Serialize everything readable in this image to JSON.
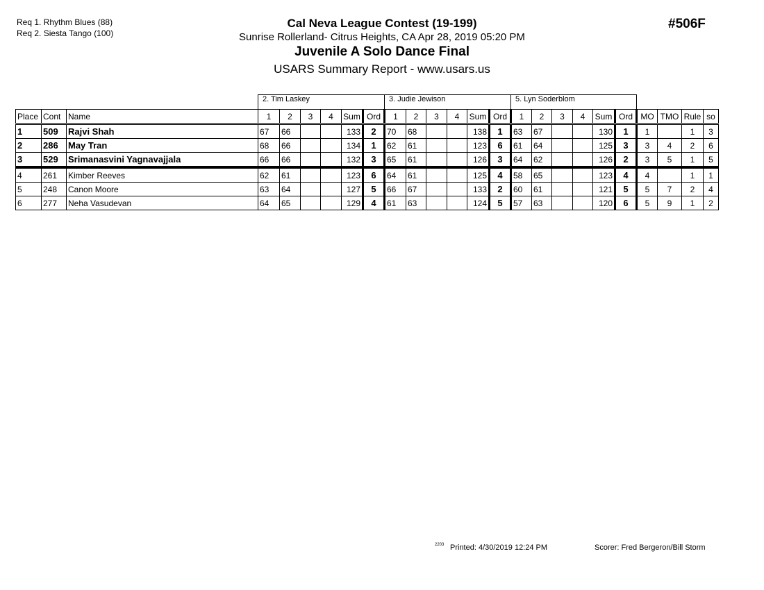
{
  "requests": [
    "Req  1.  Rhythm Blues (88)",
    "Req  2.  Siesta Tango (100)"
  ],
  "header": {
    "title": "Cal Neva League Contest (19-199)",
    "location": "Sunrise Rollerland- Citrus Heights, CA  Apr 28, 2019  05:20 PM",
    "event": "Juvenile A Solo Dance Final",
    "report": "USARS Summary Report - www.usars.us",
    "code": "#506F"
  },
  "judges": [
    "2.  Tim Laskey",
    "3.  Judie  Jewison",
    "5.  Lyn Soderblom"
  ],
  "columns": {
    "place": "Place",
    "cont": "Cont",
    "name": "Name",
    "judge_cols": [
      "1",
      "2",
      "3",
      "4",
      "Sum",
      "Ord"
    ],
    "mo": "MO",
    "tmo": "TMO",
    "rule": "Rule",
    "so": "so"
  },
  "rows": [
    {
      "place": "1",
      "cont": "509",
      "name": "Rajvi Shah",
      "judges": [
        [
          "67",
          "66",
          "",
          "",
          "133",
          "2"
        ],
        [
          "70",
          "68",
          "",
          "",
          "138",
          "1"
        ],
        [
          "63",
          "67",
          "",
          "",
          "130",
          "1"
        ]
      ],
      "mo": "1",
      "tmo": "",
      "rule": "1",
      "so": "3"
    },
    {
      "place": "2",
      "cont": "286",
      "name": "May Tran",
      "judges": [
        [
          "68",
          "66",
          "",
          "",
          "134",
          "1"
        ],
        [
          "62",
          "61",
          "",
          "",
          "123",
          "6"
        ],
        [
          "61",
          "64",
          "",
          "",
          "125",
          "3"
        ]
      ],
      "mo": "3",
      "tmo": "4",
      "rule": "2",
      "so": "6"
    },
    {
      "place": "3",
      "cont": "529",
      "name": "Srimanasvini Yagnavajjala",
      "judges": [
        [
          "66",
          "66",
          "",
          "",
          "132",
          "3"
        ],
        [
          "65",
          "61",
          "",
          "",
          "126",
          "3"
        ],
        [
          "64",
          "62",
          "",
          "",
          "126",
          "2"
        ]
      ],
      "mo": "3",
      "tmo": "5",
      "rule": "1",
      "so": "5"
    },
    {
      "place": "4",
      "cont": "261",
      "name": "Kimber Reeves",
      "judges": [
        [
          "62",
          "61",
          "",
          "",
          "123",
          "6"
        ],
        [
          "64",
          "61",
          "",
          "",
          "125",
          "4"
        ],
        [
          "58",
          "65",
          "",
          "",
          "123",
          "4"
        ]
      ],
      "mo": "4",
      "tmo": "",
      "rule": "1",
      "so": "1"
    },
    {
      "place": "5",
      "cont": "248",
      "name": "Canon Moore",
      "judges": [
        [
          "63",
          "64",
          "",
          "",
          "127",
          "5"
        ],
        [
          "66",
          "67",
          "",
          "",
          "133",
          "2"
        ],
        [
          "60",
          "61",
          "",
          "",
          "121",
          "5"
        ]
      ],
      "mo": "5",
      "tmo": "7",
      "rule": "2",
      "so": "4"
    },
    {
      "place": "6",
      "cont": "277",
      "name": "Neha Vasudevan",
      "judges": [
        [
          "64",
          "65",
          "",
          "",
          "129",
          "4"
        ],
        [
          "61",
          "63",
          "",
          "",
          "124",
          "5"
        ],
        [
          "57",
          "63",
          "",
          "",
          "120",
          "6"
        ]
      ],
      "mo": "5",
      "tmo": "9",
      "rule": "1",
      "so": "2"
    }
  ],
  "footer": {
    "mark": "2203",
    "printed": "Printed:  4/30/2019  12:24 PM",
    "scorer": "Scorer:   Fred Bergeron/Bill Storm"
  }
}
